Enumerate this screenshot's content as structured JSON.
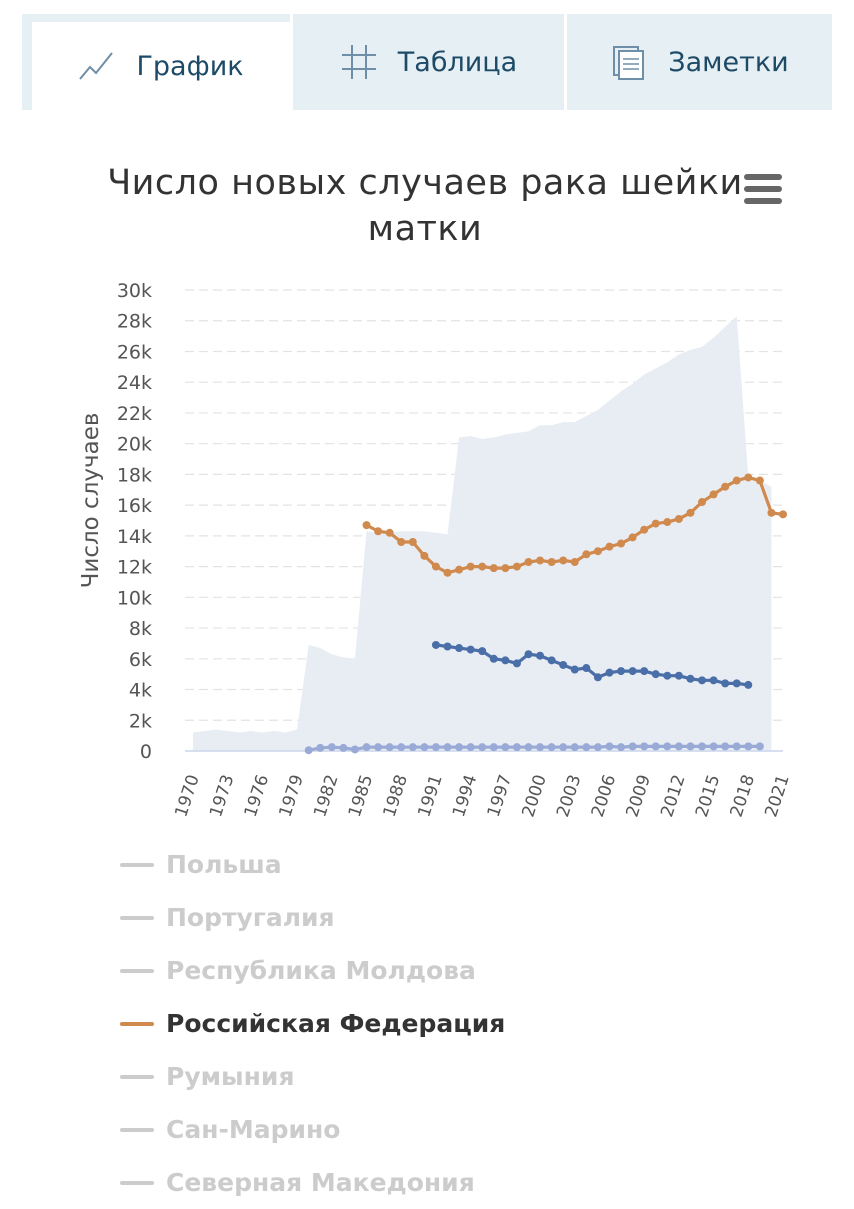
{
  "tabs": [
    {
      "label": "График",
      "icon": "line-chart-icon",
      "active": true
    },
    {
      "label": "Таблица",
      "icon": "table-grid-icon",
      "active": false
    },
    {
      "label": "Заметки",
      "icon": "notes-icon",
      "active": false
    }
  ],
  "chart_title": "Число новых случаев рака шейки матки",
  "menu_icon": "hamburger-menu-icon",
  "colors": {
    "orange": "#d08a4e",
    "blue": "#4a6ea8",
    "lightblue": "#9aaad6",
    "area": "#e8edf4",
    "legend_inactive": "#cccccc",
    "legend_active": "#333333"
  },
  "chart_data": {
    "type": "line",
    "title": "Число новых случаев рака шейки матки",
    "ylabel": "Число случаев",
    "xlabel": "",
    "ylim": [
      0,
      30000
    ],
    "yticks": [
      "0",
      "2k",
      "4k",
      "6k",
      "8k",
      "10k",
      "12k",
      "14k",
      "16k",
      "18k",
      "20k",
      "22k",
      "24k",
      "26k",
      "28k",
      "30k"
    ],
    "xticks": [
      "1970",
      "1973",
      "1976",
      "1979",
      "1982",
      "1985",
      "1988",
      "1991",
      "1994",
      "1997",
      "2000",
      "2003",
      "2006",
      "2009",
      "2012",
      "2015",
      "2018",
      "2021"
    ],
    "xlim": [
      1970,
      2021
    ],
    "grid": true,
    "background_area": {
      "x": [
        1970,
        1971,
        1972,
        1973,
        1974,
        1975,
        1976,
        1977,
        1978,
        1979,
        1980,
        1981,
        1982,
        1983,
        1984,
        1985,
        1986,
        1987,
        1988,
        1989,
        1990,
        1991,
        1992,
        1993,
        1994,
        1995,
        1996,
        1997,
        1998,
        1999,
        2000,
        2001,
        2002,
        2003,
        2004,
        2005,
        2006,
        2007,
        2008,
        2009,
        2010,
        2011,
        2012,
        2013,
        2014,
        2015,
        2016,
        2017,
        2018,
        2019,
        2020
      ],
      "y": [
        1200,
        1300,
        1400,
        1300,
        1200,
        1300,
        1200,
        1300,
        1200,
        1400,
        6900,
        6700,
        6300,
        6100,
        6000,
        14300,
        14200,
        14200,
        14300,
        14300,
        14300,
        14200,
        14100,
        20400,
        20500,
        20300,
        20400,
        20600,
        20700,
        20800,
        21200,
        21200,
        21400,
        21400,
        21800,
        22200,
        22800,
        23400,
        23900,
        24500,
        24900,
        25300,
        25800,
        26100,
        26300,
        26900,
        27600,
        28300,
        17800,
        17600,
        17200
      ]
    },
    "series": [
      {
        "name": "Российская Федерация",
        "color": "#d08a4e",
        "x": [
          1985,
          1986,
          1987,
          1988,
          1989,
          1990,
          1991,
          1992,
          1993,
          1994,
          1995,
          1996,
          1997,
          1998,
          1999,
          2000,
          2001,
          2002,
          2003,
          2004,
          2005,
          2006,
          2007,
          2008,
          2009,
          2010,
          2011,
          2012,
          2013,
          2014,
          2015,
          2016,
          2017,
          2018,
          2019,
          2020,
          2021
        ],
        "y": [
          14700,
          14300,
          14200,
          13600,
          13600,
          12700,
          12000,
          11600,
          11800,
          12000,
          12000,
          11900,
          11900,
          12000,
          12300,
          12400,
          12300,
          12400,
          12300,
          12800,
          13000,
          13300,
          13500,
          13900,
          14400,
          14800,
          14900,
          15100,
          15500,
          16200,
          16700,
          17200,
          17600,
          17800,
          17600,
          15500,
          15400
        ]
      },
      {
        "color": "#4a6ea8",
        "x": [
          1991,
          1992,
          1993,
          1994,
          1995,
          1996,
          1997,
          1998,
          1999,
          2000,
          2001,
          2002,
          2003,
          2004,
          2005,
          2006,
          2007,
          2008,
          2009,
          2010,
          2011,
          2012,
          2013,
          2014,
          2015,
          2016,
          2017,
          2018
        ],
        "y": [
          6900,
          6800,
          6700,
          6600,
          6500,
          6000,
          5900,
          5700,
          6300,
          6200,
          5900,
          5600,
          5300,
          5400,
          4800,
          5100,
          5200,
          5200,
          5200,
          5000,
          4900,
          4900,
          4700,
          4600,
          4600,
          4400,
          4400,
          4300
        ]
      },
      {
        "color": "#9aaad6",
        "x": [
          1980,
          1981,
          1982,
          1983,
          1984,
          1985,
          1986,
          1987,
          1988,
          1989,
          1990,
          1991,
          1992,
          1993,
          1994,
          1995,
          1996,
          1997,
          1998,
          1999,
          2000,
          2001,
          2002,
          2003,
          2004,
          2005,
          2006,
          2007,
          2008,
          2009,
          2010,
          2011,
          2012,
          2013,
          2014,
          2015,
          2016,
          2017,
          2018,
          2019
        ],
        "y": [
          50,
          200,
          250,
          200,
          100,
          250,
          250,
          250,
          250,
          250,
          250,
          250,
          250,
          250,
          250,
          250,
          250,
          250,
          250,
          250,
          250,
          250,
          250,
          250,
          250,
          250,
          300,
          250,
          300,
          300,
          300,
          300,
          300,
          300,
          300,
          300,
          300,
          300,
          300,
          300
        ]
      }
    ]
  },
  "legend": [
    {
      "label": "Польша",
      "active": false
    },
    {
      "label": "Португалия",
      "active": false
    },
    {
      "label": "Республика Молдова",
      "active": false
    },
    {
      "label": "Российская Федерация",
      "active": true
    },
    {
      "label": "Румыния",
      "active": false
    },
    {
      "label": "Сан-Марино",
      "active": false
    },
    {
      "label": "Северная Македония",
      "active": false
    }
  ]
}
